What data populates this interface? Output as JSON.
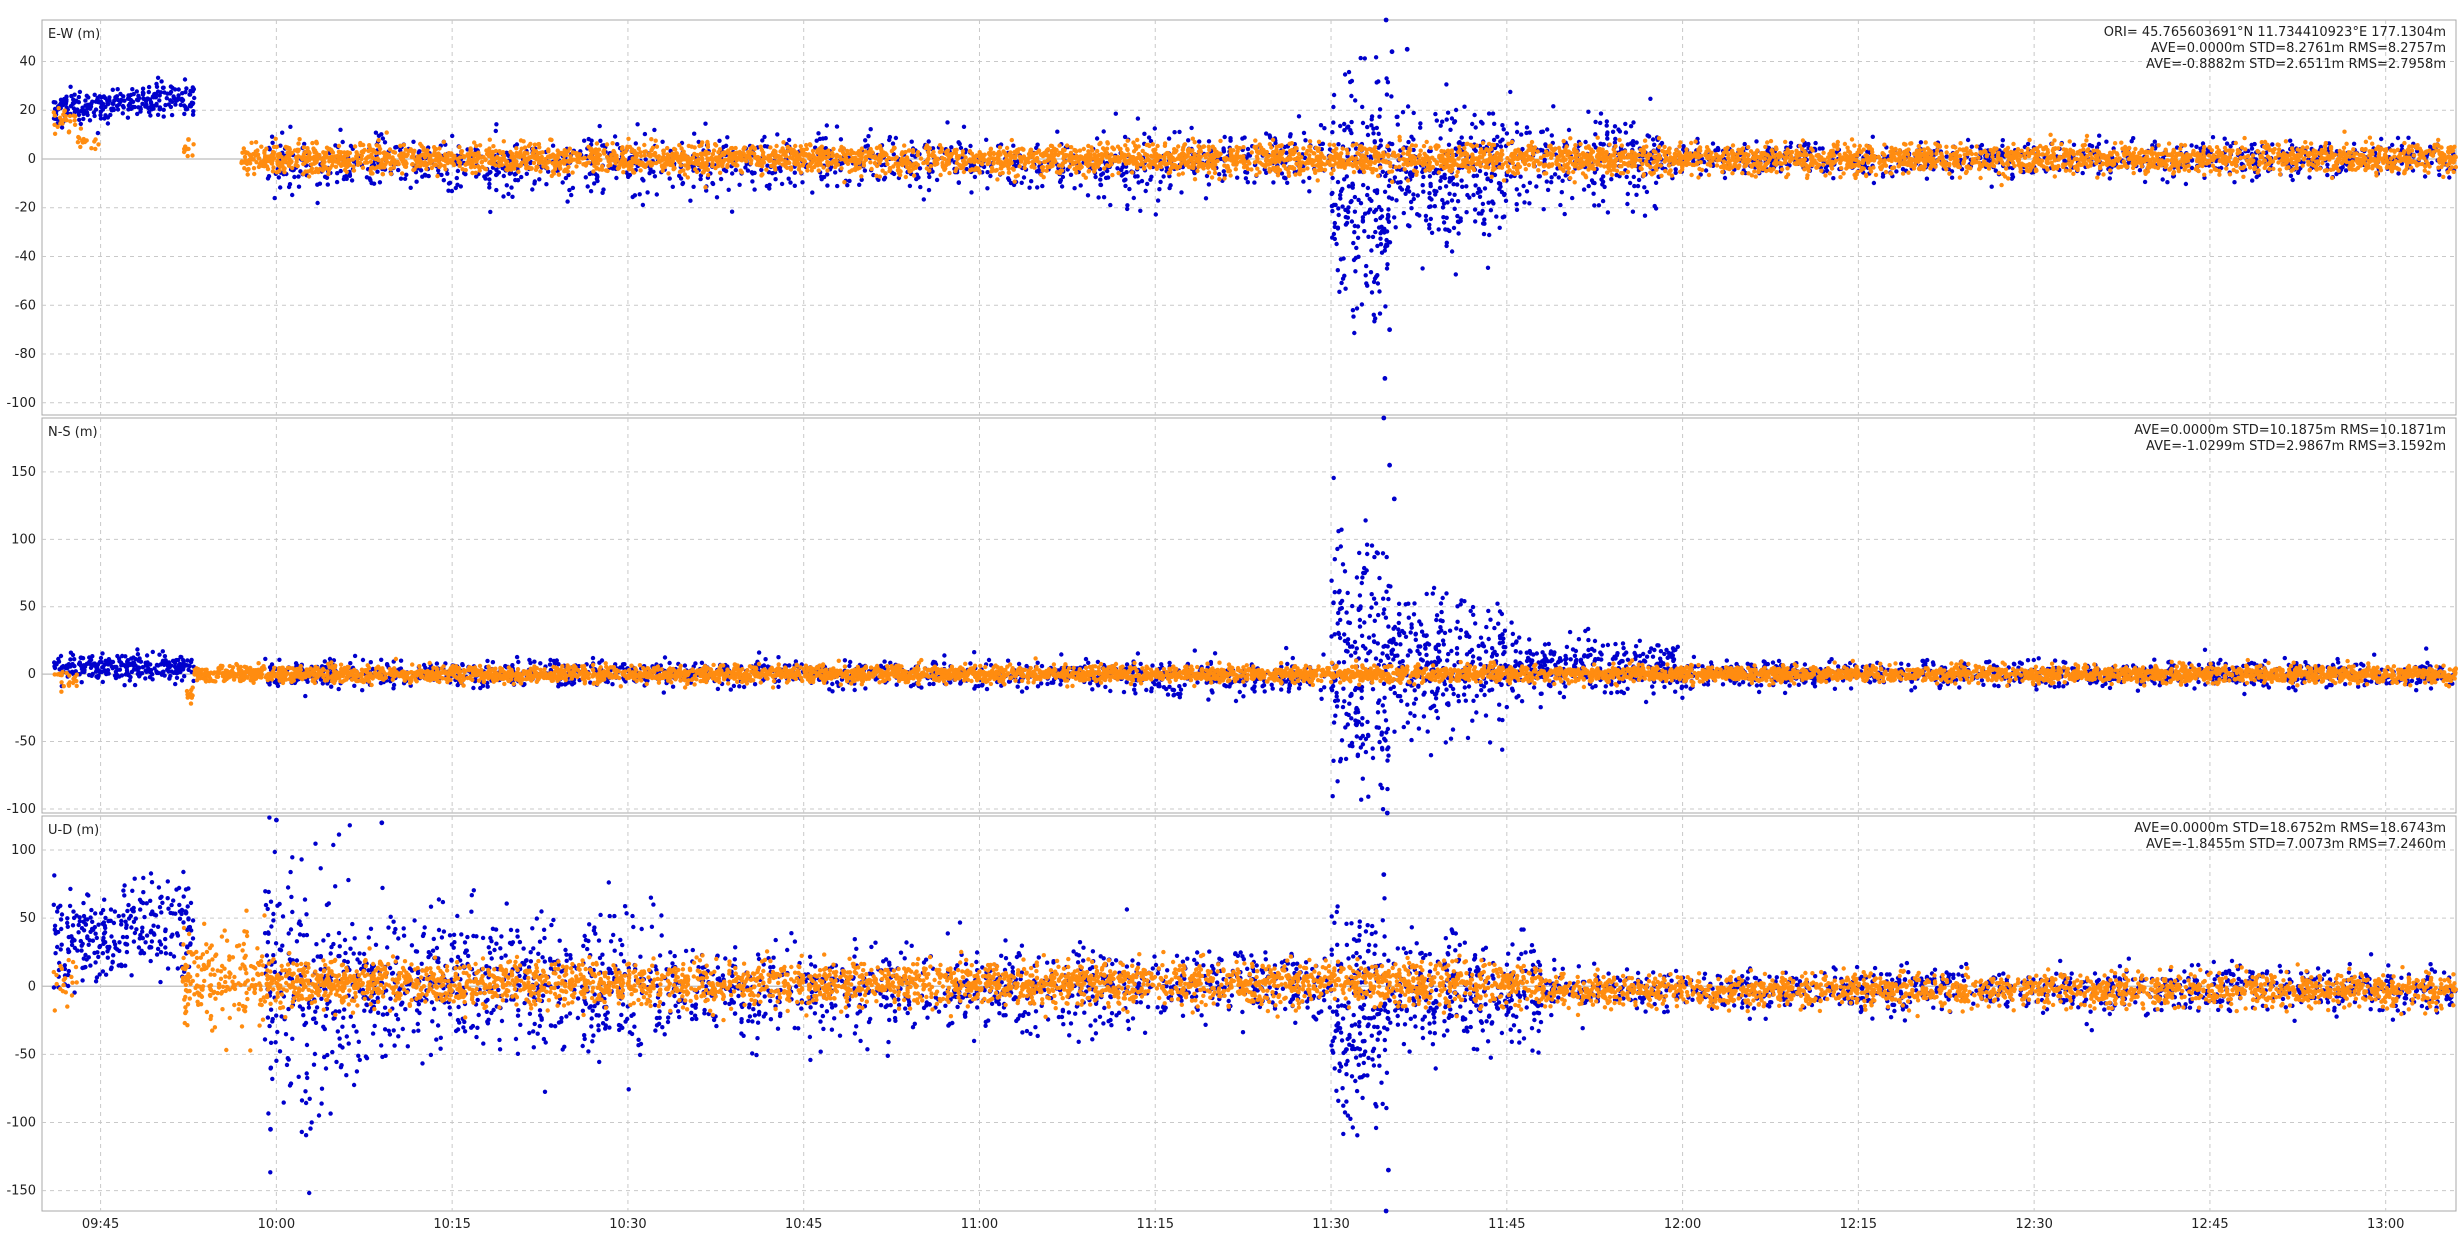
{
  "colors": {
    "series1": "#0000cc",
    "series2": "#ff8c10",
    "grid": "#c9c9c9",
    "frame": "#a8a8a8"
  },
  "chart_data": [
    {
      "type": "scatter",
      "panel": "E-W",
      "title": "E-W (m)",
      "ylim": [
        -105,
        57
      ],
      "y_ticks": [
        40,
        20,
        0,
        -20,
        -40,
        -60,
        -80,
        -100
      ],
      "x_ticks": [
        "09:45",
        "10:00",
        "10:15",
        "10:30",
        "10:45",
        "11:00",
        "11:15",
        "11:30",
        "11:45",
        "12:00",
        "12:15",
        "12:30",
        "12:45",
        "13:00"
      ],
      "x_unit": "minutes after 09:40",
      "xlim": [
        -3,
        203
      ],
      "grid": true,
      "stats_lines": [
        "ORI= 45.765603691°N  11.734410923°E 177.1304m",
        "AVE=0.0000m STD=8.2761m RMS=8.2757m",
        "AVE=-0.8882m STD=2.6511m RMS=2.7958m"
      ],
      "series": [
        {
          "color": "series1",
          "segments": [
            {
              "x0": -2,
              "x1": 10,
              "mean": 23,
              "sd": 3.5,
              "drift": 6,
              "density": 22
            },
            {
              "x0": 16,
              "x1": 88,
              "mean": -2,
              "sd": 6,
              "density": 12
            },
            {
              "x0": 88,
              "x1": 94,
              "mean": -4,
              "sd": 8,
              "density": 12
            },
            {
              "x0": 94,
              "x1": 107,
              "mean": 0,
              "sd": 6,
              "density": 12
            },
            {
              "x0": 107,
              "x1": 112,
              "mean": -12,
              "sd": 24,
              "density": 45
            },
            {
              "x0": 112,
              "x1": 122,
              "mean": -6,
              "sd": 14,
              "density": 28
            },
            {
              "x0": 122,
              "x1": 135,
              "mean": 0,
              "sd": 9,
              "density": 18
            },
            {
              "x0": 135,
              "x1": 203,
              "mean": 0,
              "sd": 3.5,
              "density": 12
            }
          ],
          "outliers": [
            [
              111.7,
              57
            ],
            [
              111.6,
              -90
            ],
            [
              112.2,
              44
            ],
            [
              113.5,
              45
            ],
            [
              112,
              -70
            ]
          ]
        },
        {
          "color": "series2",
          "segments": [
            {
              "x0": -2,
              "x1": 0,
              "mean": 16,
              "sd": 2.5,
              "density": 12
            },
            {
              "x0": 0,
              "x1": 2,
              "mean": 7,
              "sd": 2,
              "density": 8
            },
            {
              "x0": 9,
              "x1": 10,
              "mean": 3,
              "sd": 2,
              "density": 10
            },
            {
              "x0": 14,
              "x1": 203,
              "mean": 0,
              "sd": 3,
              "density": 26
            }
          ],
          "outliers": [
            [
              9.5,
              8
            ]
          ]
        }
      ]
    },
    {
      "type": "scatter",
      "panel": "N-S",
      "title": "N-S (m)",
      "ylim": [
        -103,
        190
      ],
      "y_ticks": [
        150,
        100,
        50,
        0,
        -50,
        -100
      ],
      "x_ticks": [
        "09:45",
        "10:00",
        "10:15",
        "10:30",
        "10:45",
        "11:00",
        "11:15",
        "11:30",
        "11:45",
        "12:00",
        "12:15",
        "12:30",
        "12:45",
        "13:00"
      ],
      "x_unit": "minutes after 09:40",
      "xlim": [
        -3,
        203
      ],
      "grid": true,
      "stats_lines": [
        "AVE=0.0000m STD=10.1875m RMS=10.1871m",
        "AVE=-1.0299m STD=2.9867m RMS=3.1592m"
      ],
      "series": [
        {
          "color": "series1",
          "segments": [
            {
              "x0": -2,
              "x1": 10,
              "mean": 5,
              "sd": 5,
              "density": 22
            },
            {
              "x0": 16,
              "x1": 90,
              "mean": 0,
              "sd": 5,
              "density": 12
            },
            {
              "x0": 90,
              "x1": 107,
              "mean": -3,
              "sd": 7,
              "density": 12
            },
            {
              "x0": 107,
              "x1": 112,
              "mean": 5,
              "sd": 45,
              "density": 45
            },
            {
              "x0": 112,
              "x1": 122,
              "mean": 8,
              "sd": 25,
              "density": 30
            },
            {
              "x0": 122,
              "x1": 137,
              "mean": 5,
              "sd": 10,
              "density": 22
            },
            {
              "x0": 137,
              "x1": 203,
              "mean": 0,
              "sd": 5,
              "density": 12
            }
          ],
          "outliers": [
            [
              111.5,
              190
            ],
            [
              111.8,
              -103
            ],
            [
              112,
              155
            ],
            [
              112.4,
              130
            ]
          ]
        },
        {
          "color": "series2",
          "segments": [
            {
              "x0": -2,
              "x1": 0,
              "mean": -3,
              "sd": 4,
              "density": 10
            },
            {
              "x0": 9,
              "x1": 10,
              "mean": -15,
              "sd": 3,
              "density": 10
            },
            {
              "x0": 10,
              "x1": 203,
              "mean": 0,
              "sd": 3,
              "density": 26
            }
          ],
          "outliers": []
        }
      ]
    },
    {
      "type": "scatter",
      "panel": "U-D",
      "title": "U-D (m)",
      "ylim": [
        -165,
        125
      ],
      "y_ticks": [
        100,
        50,
        0,
        -50,
        -100,
        -150
      ],
      "x_ticks": [
        "09:45",
        "10:00",
        "10:15",
        "10:30",
        "10:45",
        "11:00",
        "11:15",
        "11:30",
        "11:45",
        "12:00",
        "12:15",
        "12:30",
        "12:45",
        "13:00"
      ],
      "x_unit": "minutes after 09:40",
      "xlim": [
        -3,
        203
      ],
      "grid": true,
      "stats_lines": [
        "AVE=0.0000m STD=18.6752m RMS=18.6743m",
        "AVE=-1.8455m STD=7.0073m RMS=7.2460m"
      ],
      "series": [
        {
          "color": "series1",
          "segments": [
            {
              "x0": -2,
              "x1": 10,
              "mean": 40,
              "sd": 17,
              "drift": 20,
              "density": 24
            },
            {
              "x0": 16,
              "x1": 24,
              "mean": 0,
              "sd": 45,
              "density": 28
            },
            {
              "x0": 24,
              "x1": 50,
              "mean": 0,
              "sd": 25,
              "density": 22
            },
            {
              "x0": 50,
              "x1": 90,
              "mean": -4,
              "sd": 16,
              "density": 16
            },
            {
              "x0": 90,
              "x1": 107,
              "mean": 0,
              "sd": 12,
              "density": 14
            },
            {
              "x0": 107,
              "x1": 112,
              "mean": -20,
              "sd": 42,
              "density": 40
            },
            {
              "x0": 112,
              "x1": 125,
              "mean": -5,
              "sd": 20,
              "density": 22
            },
            {
              "x0": 125,
              "x1": 203,
              "mean": -3,
              "sd": 8,
              "density": 12
            }
          ],
          "outliers": [
            [
              17,
              122
            ],
            [
              26,
              120
            ],
            [
              111.7,
              -165
            ],
            [
              111.5,
              82
            ],
            [
              111.9,
              -135
            ],
            [
              16.5,
              -105
            ]
          ]
        },
        {
          "color": "series2",
          "segments": [
            {
              "x0": -2,
              "x1": 0,
              "mean": 2,
              "sd": 8,
              "density": 10
            },
            {
              "x0": 9,
              "x1": 16,
              "mean": 5,
              "sd": 18,
              "density": 28
            },
            {
              "x0": 16,
              "x1": 125,
              "mean": 2,
              "sd": 8,
              "density": 26
            },
            {
              "x0": 125,
              "x1": 203,
              "mean": -3,
              "sd": 6,
              "density": 22
            }
          ],
          "outliers": []
        }
      ]
    }
  ]
}
